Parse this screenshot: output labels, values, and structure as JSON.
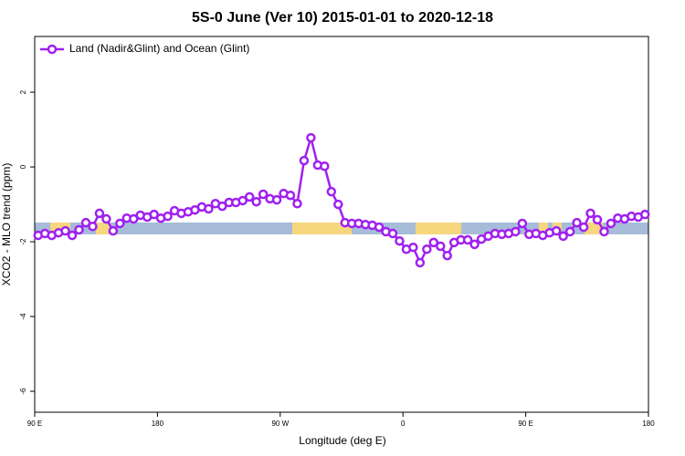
{
  "chart_data": {
    "type": "line",
    "title": "5S-0 June (Ver 10)   2015-01-01 to 2020-12-18",
    "x_label": "Longitude (deg E)",
    "y_label": "XCO2 - MLO trend (ppm)",
    "xlim": [
      90,
      540
    ],
    "ylim": [
      -6.56,
      3.49
    ],
    "xticks": [
      {
        "value": 90,
        "label": "90 E"
      },
      180,
      {
        "value": 270,
        "label": "90 W"
      },
      {
        "value": 360,
        "label": "0"
      },
      {
        "value": 450,
        "label": "90 E"
      },
      {
        "value": 540,
        "label": "180"
      }
    ],
    "yticks": [
      2,
      0,
      -2,
      -4,
      -6
    ],
    "legend": "top-left",
    "x": [
      92.5,
      97.5,
      102.5,
      107.5,
      112.5,
      117.5,
      122.5,
      127.5,
      132.5,
      137.5,
      142.5,
      147.5,
      152.5,
      157.5,
      162.5,
      167.5,
      172.5,
      177.5,
      182.5,
      187.5,
      192.5,
      197.5,
      202.5,
      207.5,
      212.5,
      217.5,
      222.5,
      227.5,
      232.5,
      237.5,
      242.5,
      247.5,
      252.5,
      257.5,
      262.5,
      267.5,
      272.5,
      277.5,
      282.5,
      287.5,
      292.5,
      297.5,
      302.5,
      307.5,
      312.5,
      317.5,
      322.5,
      327.5,
      332.5,
      337.5,
      342.5,
      347.5,
      352.5,
      357.5,
      362.5,
      367.5,
      372.5,
      377.5,
      382.5,
      387.5,
      392.5,
      397.5,
      402.5,
      407.5,
      412.5,
      417.5,
      422.5,
      427.5,
      432.5,
      437.5,
      442.5,
      447.5,
      452.5,
      457.5,
      462.5,
      467.5,
      472.5,
      477.5,
      482.5,
      487.5,
      492.5,
      497.5,
      502.5,
      507.5,
      512.5,
      517.5,
      522.5,
      527.5,
      532.5,
      537.5
    ],
    "series": [
      {
        "name": "Land (Nadir&Glint) and Ocean (Glint)",
        "color": "#a020f0",
        "values": [
          -1.83,
          -1.78,
          -1.83,
          -1.76,
          -1.71,
          -1.83,
          -1.68,
          -1.49,
          -1.59,
          -1.24,
          -1.39,
          -1.71,
          -1.51,
          -1.37,
          -1.39,
          -1.29,
          -1.34,
          -1.27,
          -1.37,
          -1.32,
          -1.17,
          -1.24,
          -1.2,
          -1.15,
          -1.07,
          -1.12,
          -0.98,
          -1.05,
          -0.95,
          -0.95,
          -0.9,
          -0.8,
          -0.93,
          -0.73,
          -0.85,
          -0.88,
          -0.71,
          -0.76,
          -0.98,
          0.17,
          0.78,
          0.05,
          0.02,
          -0.66,
          -1.0,
          -1.49,
          -1.51,
          -1.51,
          -1.54,
          -1.56,
          -1.61,
          -1.73,
          -1.78,
          -1.98,
          -2.2,
          -2.15,
          -2.56,
          -2.2,
          -2.02,
          -2.12,
          -2.37,
          -2.02,
          -1.95,
          -1.95,
          -2.07,
          -1.93,
          -1.85,
          -1.78,
          -1.8,
          -1.78,
          -1.73,
          -1.51,
          -1.8,
          -1.78,
          -1.83,
          -1.76,
          -1.71,
          -1.85,
          -1.73,
          -1.49,
          -1.61,
          -1.24,
          -1.41,
          -1.73,
          -1.51,
          -1.37,
          -1.39,
          -1.32,
          -1.34,
          -1.27
        ]
      }
    ]
  }
}
